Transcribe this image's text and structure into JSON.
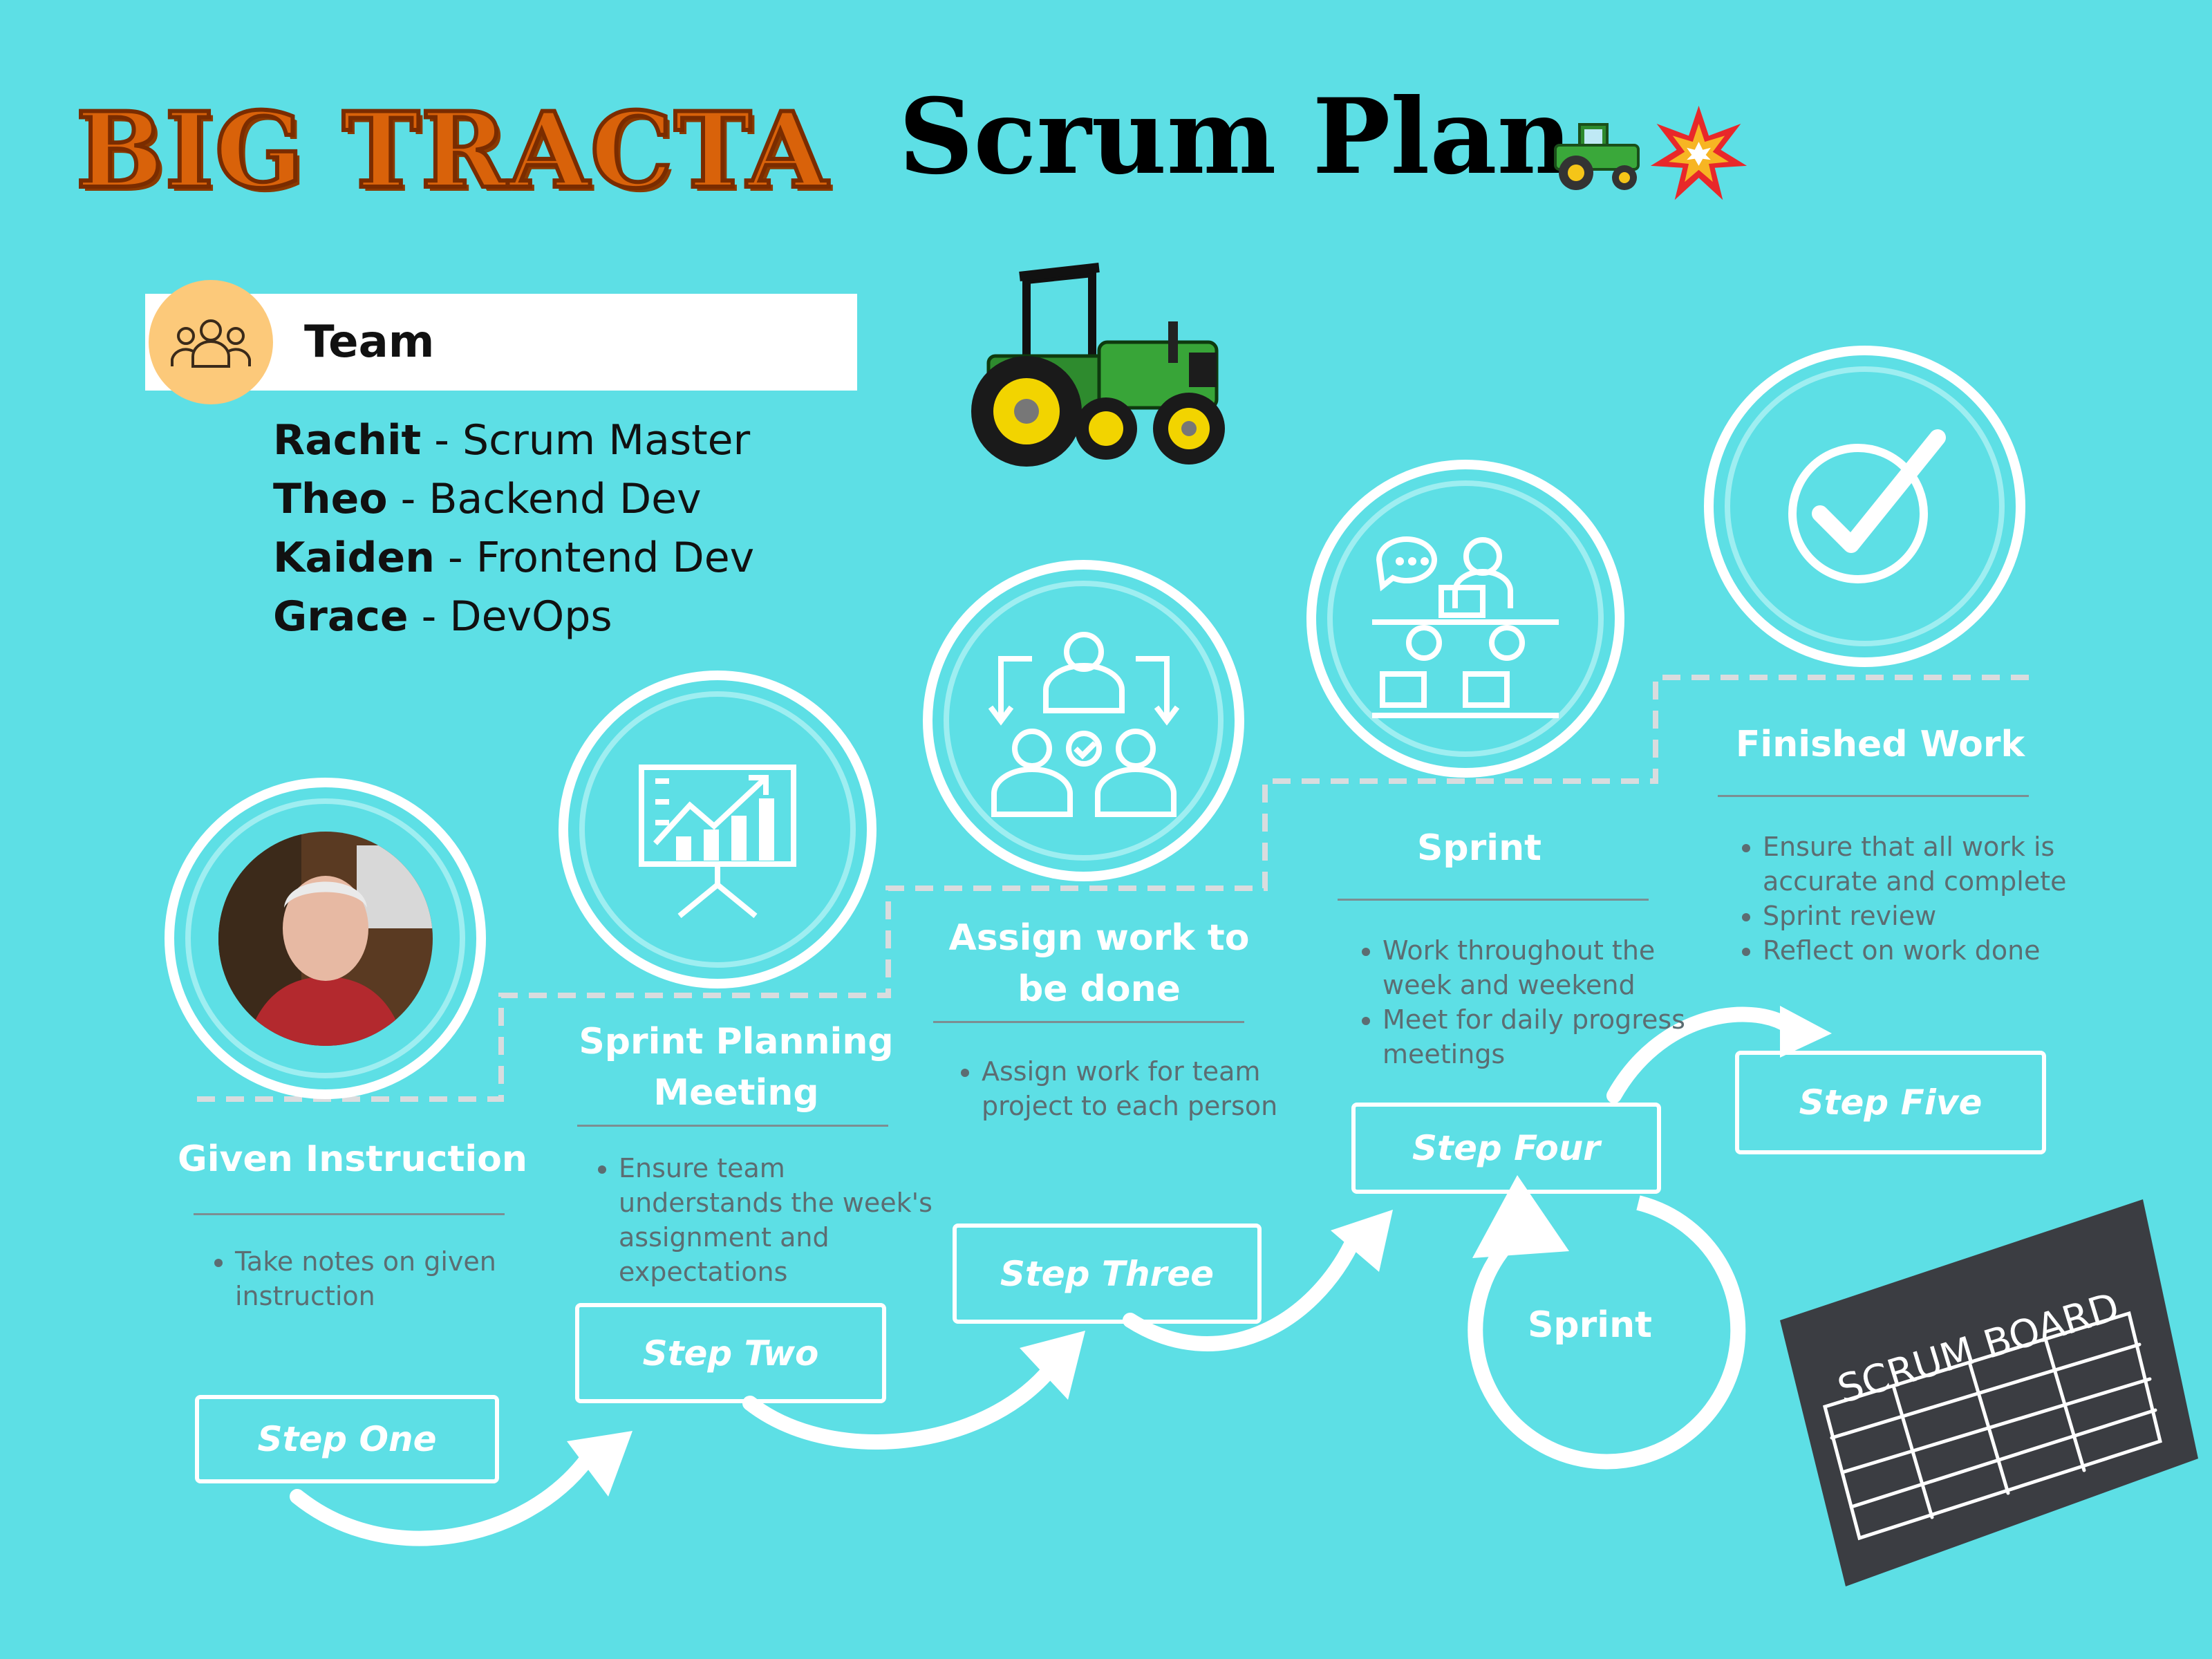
{
  "header": {
    "brand": "BIG TRACTA",
    "title": "Scrum Plan",
    "title_icons": [
      "tractor-emoji",
      "collision-emoji"
    ]
  },
  "team": {
    "heading": "Team",
    "members": [
      {
        "name": "Rachit",
        "role": "Scrum Master"
      },
      {
        "name": "Theo",
        "role": "Backend Dev"
      },
      {
        "name": "Kaiden",
        "role": "Frontend Dev"
      },
      {
        "name": "Grace",
        "role": "DevOps"
      }
    ]
  },
  "steps": [
    {
      "label": "Step One",
      "title": "Given Instruction",
      "bullets": [
        "Take notes on given instruction"
      ],
      "icon": "portrait-photo"
    },
    {
      "label": "Step Two",
      "title": "Sprint Planning Meeting",
      "bullets": [
        "Ensure team understands the week's assignment and expectations"
      ],
      "icon": "presentation-chart-icon"
    },
    {
      "label": "Step Three",
      "title": "Assign work to be done",
      "bullets": [
        "Assign work for team project to each person"
      ],
      "icon": "team-assignment-icon"
    },
    {
      "label": "Step Four",
      "title": "Sprint",
      "bullets": [
        "Work throughout the week and weekend",
        "Meet for daily progress meetings"
      ],
      "icon": "team-meeting-icon"
    },
    {
      "label": "Step Five",
      "title": "Finished Work",
      "bullets": [
        "Ensure that all work is accurate and complete",
        "Sprint review",
        "Reflect on work done"
      ],
      "icon": "checkmark-icon"
    }
  ],
  "sprint_loop_label": "Sprint",
  "scrum_board": {
    "label": "SCRUM BOARD"
  },
  "colors": {
    "background": "#5ddfe5",
    "team_badge": "#fcc97a",
    "white": "#ffffff"
  }
}
